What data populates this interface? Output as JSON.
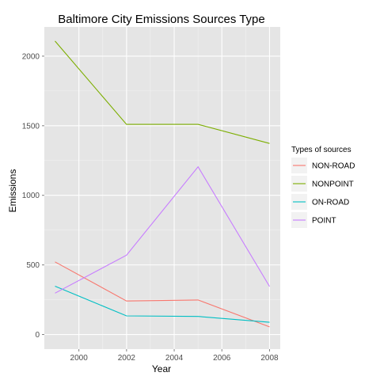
{
  "chart_data": {
    "type": "line",
    "title": "Baltimore City Emissions Sources Type",
    "xlabel": "Year",
    "ylabel": "Emissions",
    "x": [
      1999,
      2002,
      2005,
      2008
    ],
    "xlim": [
      1998.55,
      2008.45
    ],
    "ylim": [
      -105,
      2210
    ],
    "x_ticks": [
      2000,
      2002,
      2004,
      2006,
      2008
    ],
    "y_ticks": [
      0,
      500,
      1000,
      1500,
      2000
    ],
    "grid": true,
    "legend": {
      "title": "Types of sources",
      "placement": "right"
    },
    "series": [
      {
        "name": "NON-ROAD",
        "color": "#F8766D",
        "values": [
          522,
          241,
          248,
          55
        ]
      },
      {
        "name": "NONPOINT",
        "color": "#7CAE00",
        "values": [
          2108,
          1510,
          1510,
          1373
        ]
      },
      {
        "name": "ON-ROAD",
        "color": "#00BFC4",
        "values": [
          347,
          134,
          130,
          88
        ]
      },
      {
        "name": "POINT",
        "color": "#C77CFF",
        "values": [
          297,
          570,
          1205,
          345
        ]
      }
    ]
  }
}
